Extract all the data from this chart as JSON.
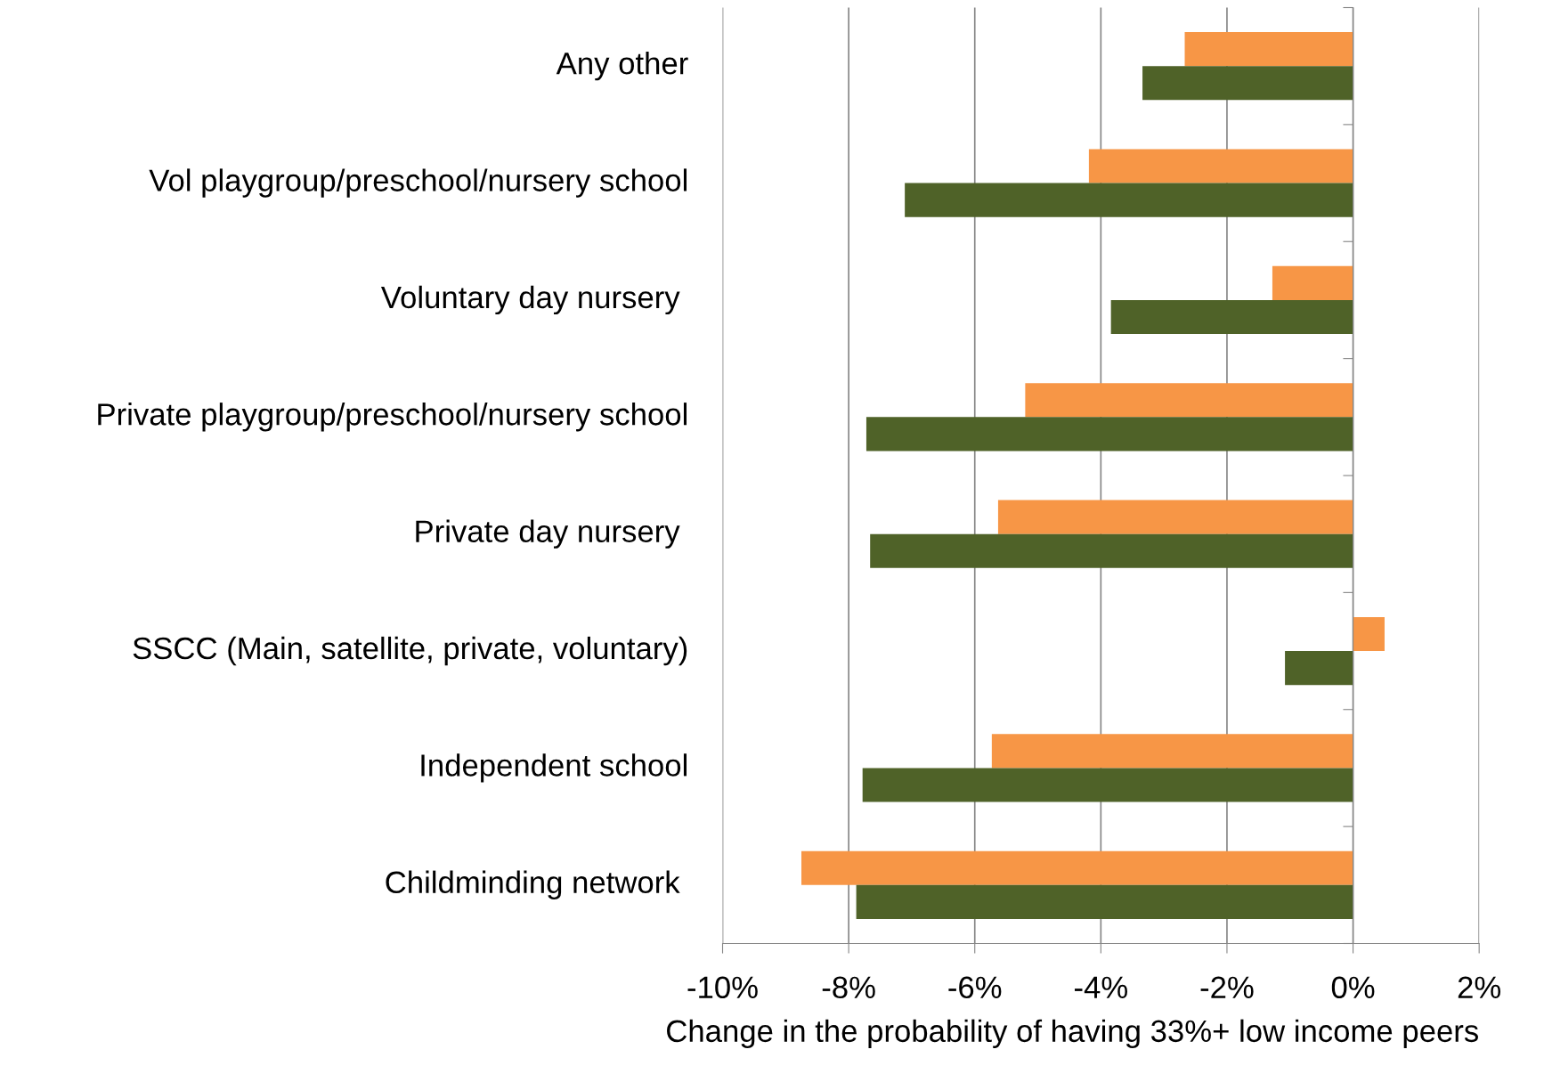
{
  "chart_data": {
    "type": "bar",
    "orientation": "horizontal",
    "xlabel": "Change in the probability of having 33%+ low income peers",
    "categories": [
      "Any other",
      "Vol playgroup/preschool/nursery school",
      "Voluntary day nursery ",
      "Private playgroup/preschool/nursery school",
      "Private day nursery ",
      "SSCC (Main, satellite, private, voluntary)",
      "Independent school",
      "Childminding network "
    ],
    "series": [
      {
        "color": "#f79646",
        "values": [
          -2.67,
          -4.19,
          -1.28,
          -5.2,
          -5.63,
          0.5,
          -5.73,
          -8.75
        ]
      },
      {
        "color": "#4f6228",
        "values": [
          -3.34,
          -7.11,
          -3.84,
          -7.72,
          -7.66,
          -1.08,
          -7.78,
          -7.88
        ]
      }
    ],
    "xlim": [
      -10,
      2
    ],
    "xticks": [
      {
        "value": -10,
        "label": "-10%"
      },
      {
        "value": -8,
        "label": "-8%"
      },
      {
        "value": -6,
        "label": "-6%"
      },
      {
        "value": -4,
        "label": "-4%"
      },
      {
        "value": -2,
        "label": "-2%"
      },
      {
        "value": 0,
        "label": "0%"
      },
      {
        "value": 2,
        "label": "2%"
      }
    ],
    "grid": "x",
    "legend": false
  }
}
